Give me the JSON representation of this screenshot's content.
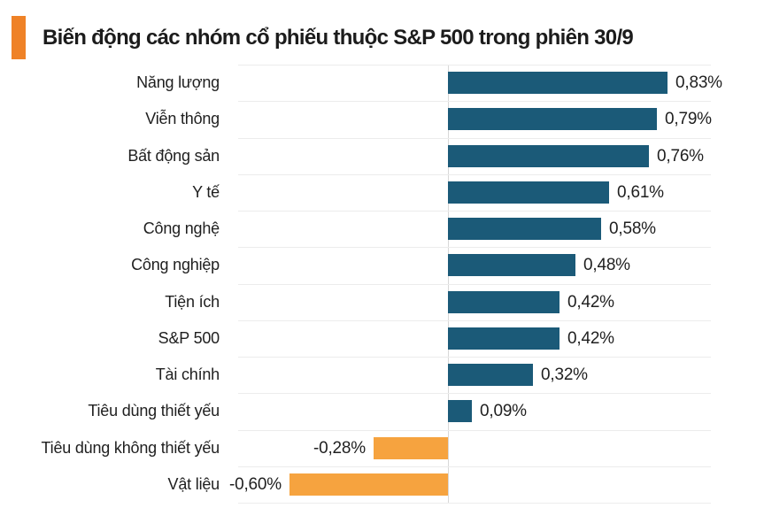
{
  "chart_data": {
    "type": "bar",
    "orientation": "horizontal",
    "title": "Biến động các nhóm cổ phiếu thuộc S&P 500 trong phiên 30/9",
    "categories": [
      "Năng lượng",
      "Viễn thông",
      "Bất động sản",
      "Y tế",
      "Công nghệ",
      "Công nghiệp",
      "Tiện ích",
      "S&P 500",
      "Tài chính",
      "Tiêu dùng thiết yếu",
      "Tiêu dùng không thiết yếu",
      "Vật liệu"
    ],
    "values": [
      0.83,
      0.79,
      0.76,
      0.61,
      0.58,
      0.48,
      0.42,
      0.42,
      0.32,
      0.09,
      -0.28,
      -0.6
    ],
    "value_labels": [
      "0,83%",
      "0,79%",
      "0,76%",
      "0,61%",
      "0,58%",
      "0,48%",
      "0,42%",
      "0,42%",
      "0,32%",
      "0,09%",
      "-0,28%",
      "-0,60%"
    ],
    "unit": "%",
    "xlim": [
      -0.8,
      1.0
    ],
    "grid": true,
    "legend": false,
    "colors": {
      "positive_bar": "#1b5a78",
      "negative_bar": "#f6a33f",
      "title_marker": "#ef8227",
      "grid_line": "#ececec",
      "zero_axis": "#d8d8d8",
      "text": "#1f1f1f"
    }
  }
}
